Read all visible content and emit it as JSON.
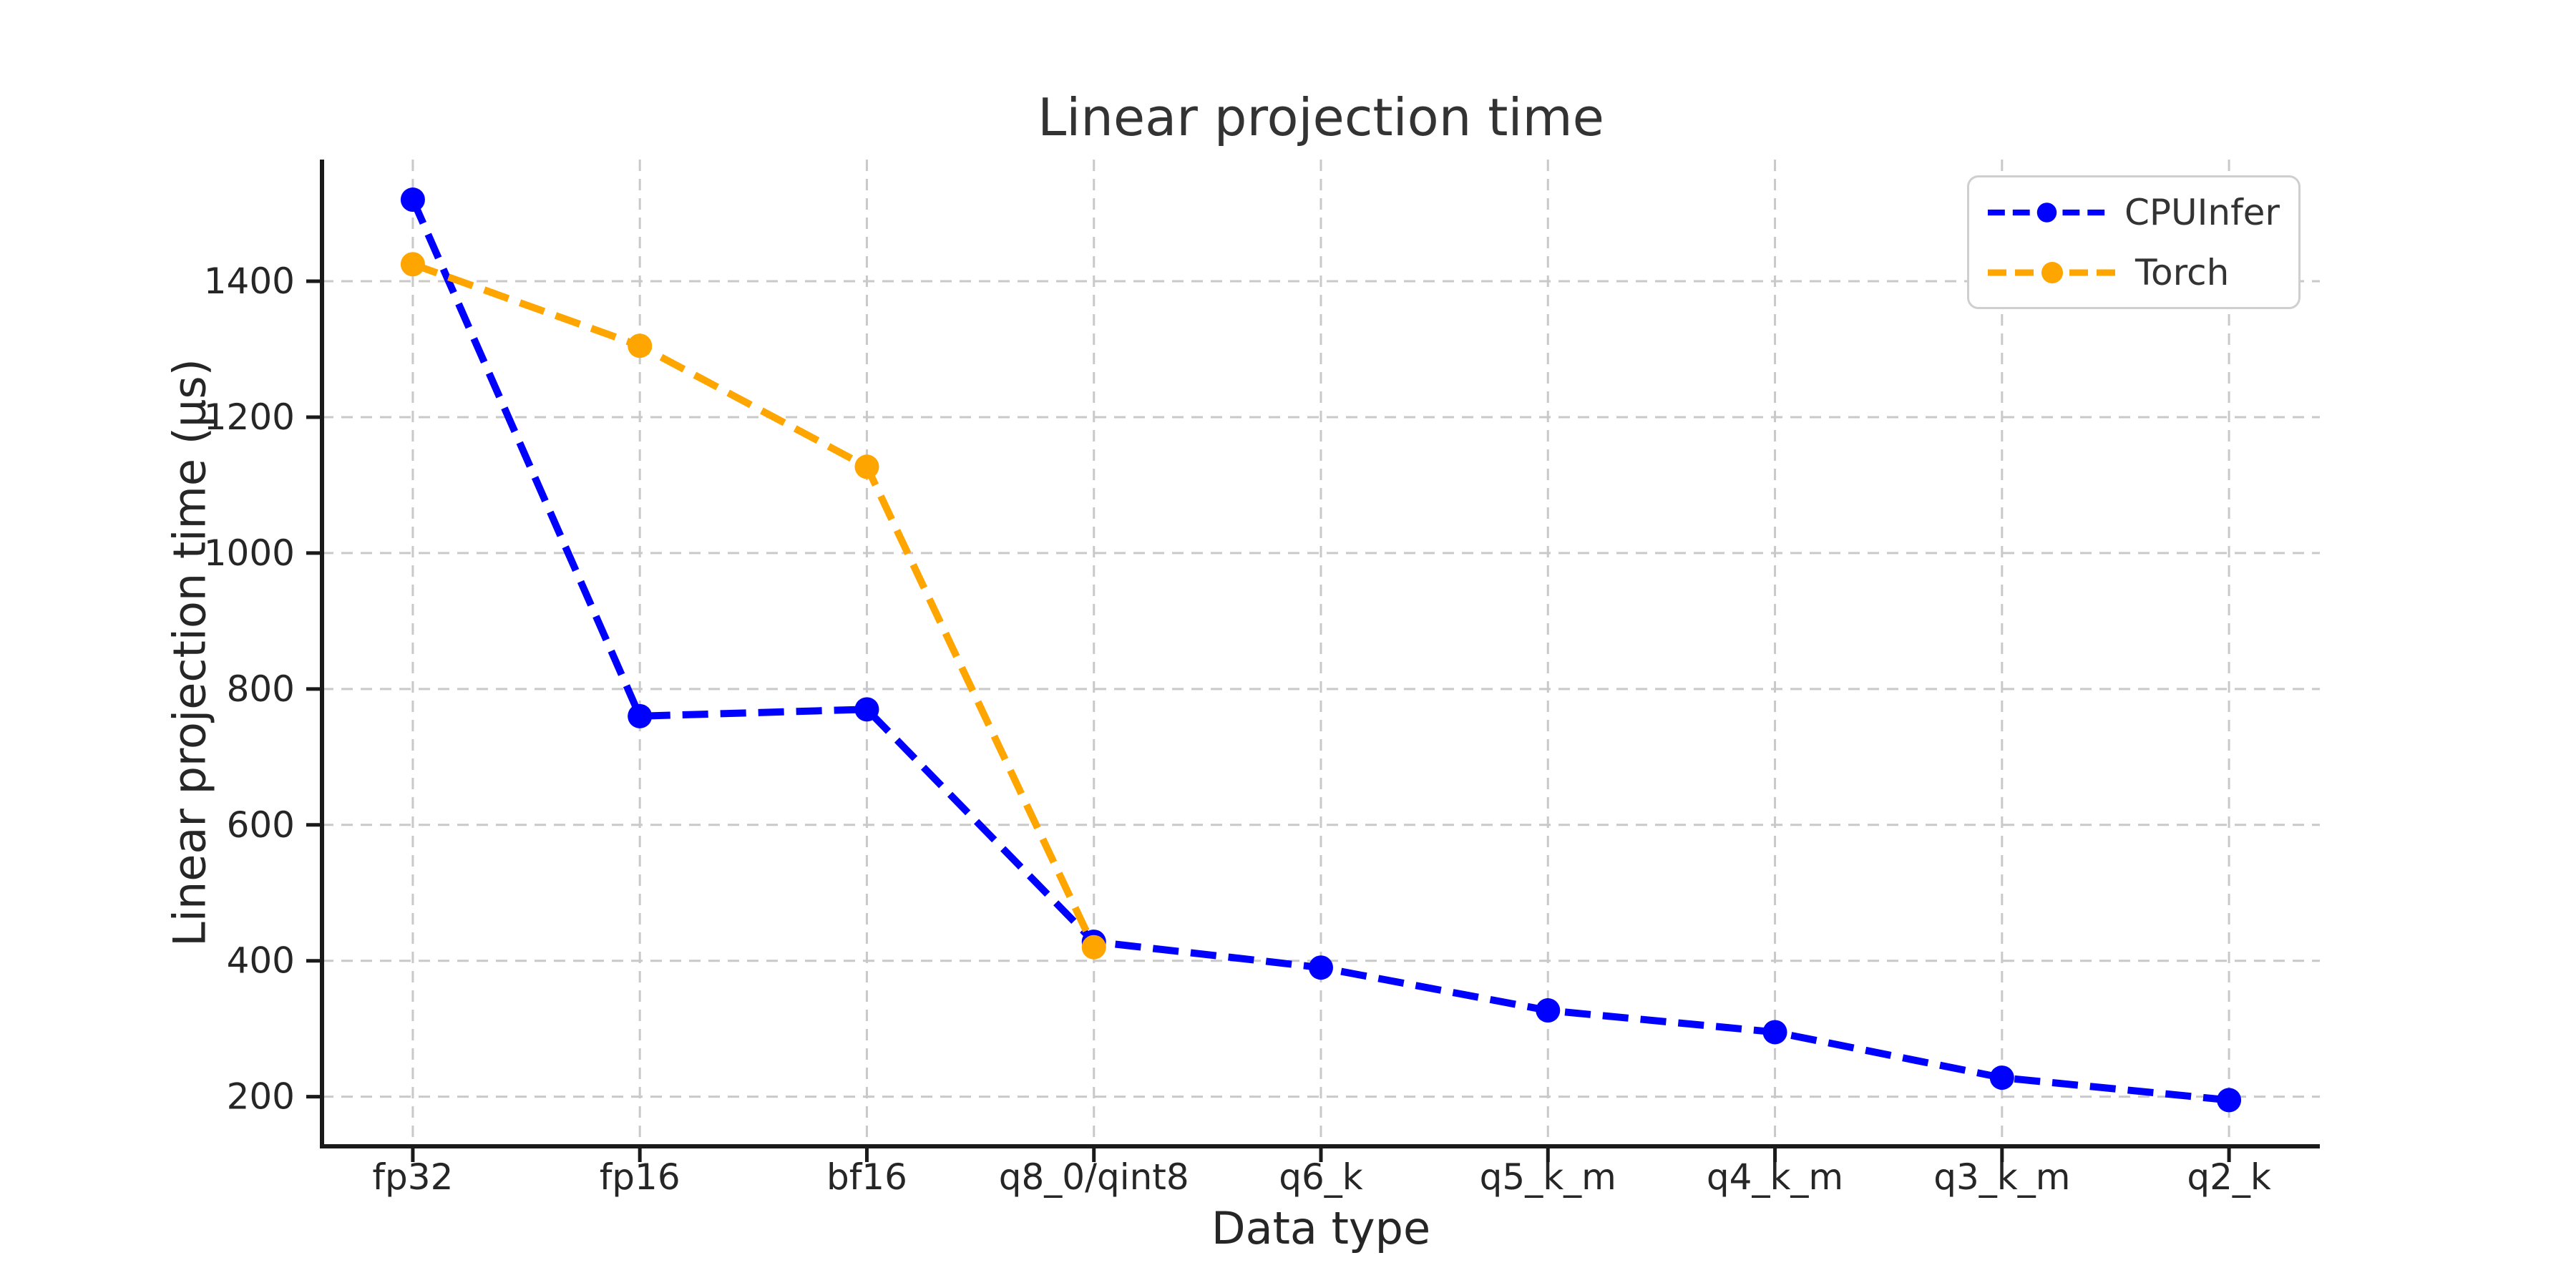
{
  "chart_data": {
    "type": "line",
    "title": "Linear projection time",
    "xlabel": "Data type",
    "ylabel": "Linear projection time (µs)",
    "categories": [
      "fp32",
      "fp16",
      "bf16",
      "q8_0/qint8",
      "q6_k",
      "q5_k_m",
      "q4_k_m",
      "q3_k_m",
      "q2_k"
    ],
    "series": [
      {
        "name": "CPUInfer",
        "color": "#0000ff",
        "linestyle": "dashed",
        "marker": "circle",
        "values": [
          1520,
          760,
          770,
          428,
          390,
          327,
          295,
          228,
          195
        ]
      },
      {
        "name": "Torch",
        "color": "#ffa500",
        "linestyle": "dashed",
        "marker": "circle",
        "values": [
          1425,
          1305,
          1127,
          420,
          null,
          null,
          null,
          null,
          null
        ]
      }
    ],
    "yticks": [
      200,
      400,
      600,
      800,
      1000,
      1200,
      1400
    ],
    "ylim": [
      127,
      1579
    ],
    "grid": true,
    "grid_color": "#c9c9c9",
    "spine_color": "#1a1a1a",
    "tick_label_color": "#262626",
    "legend_position": "upper right"
  }
}
